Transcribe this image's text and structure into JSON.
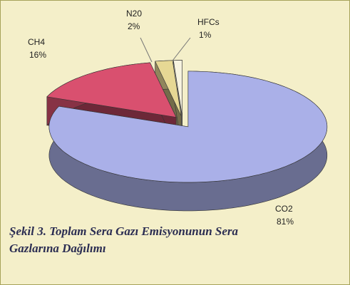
{
  "chart_data": {
    "type": "pie3d",
    "title": "Şekil 3. Toplam Sera Gazı Emisyonunun Sera Gazlarına Dağılımı",
    "categories": [
      "CO2",
      "CH4",
      "N20",
      "HFCs"
    ],
    "values": [
      81,
      16,
      2,
      1
    ],
    "value_labels": [
      "81%",
      "16%",
      "2%",
      "1%"
    ],
    "colors": [
      "#aab0e8",
      "#d9506f",
      "#e6d894",
      "#f7f3df"
    ]
  }
}
